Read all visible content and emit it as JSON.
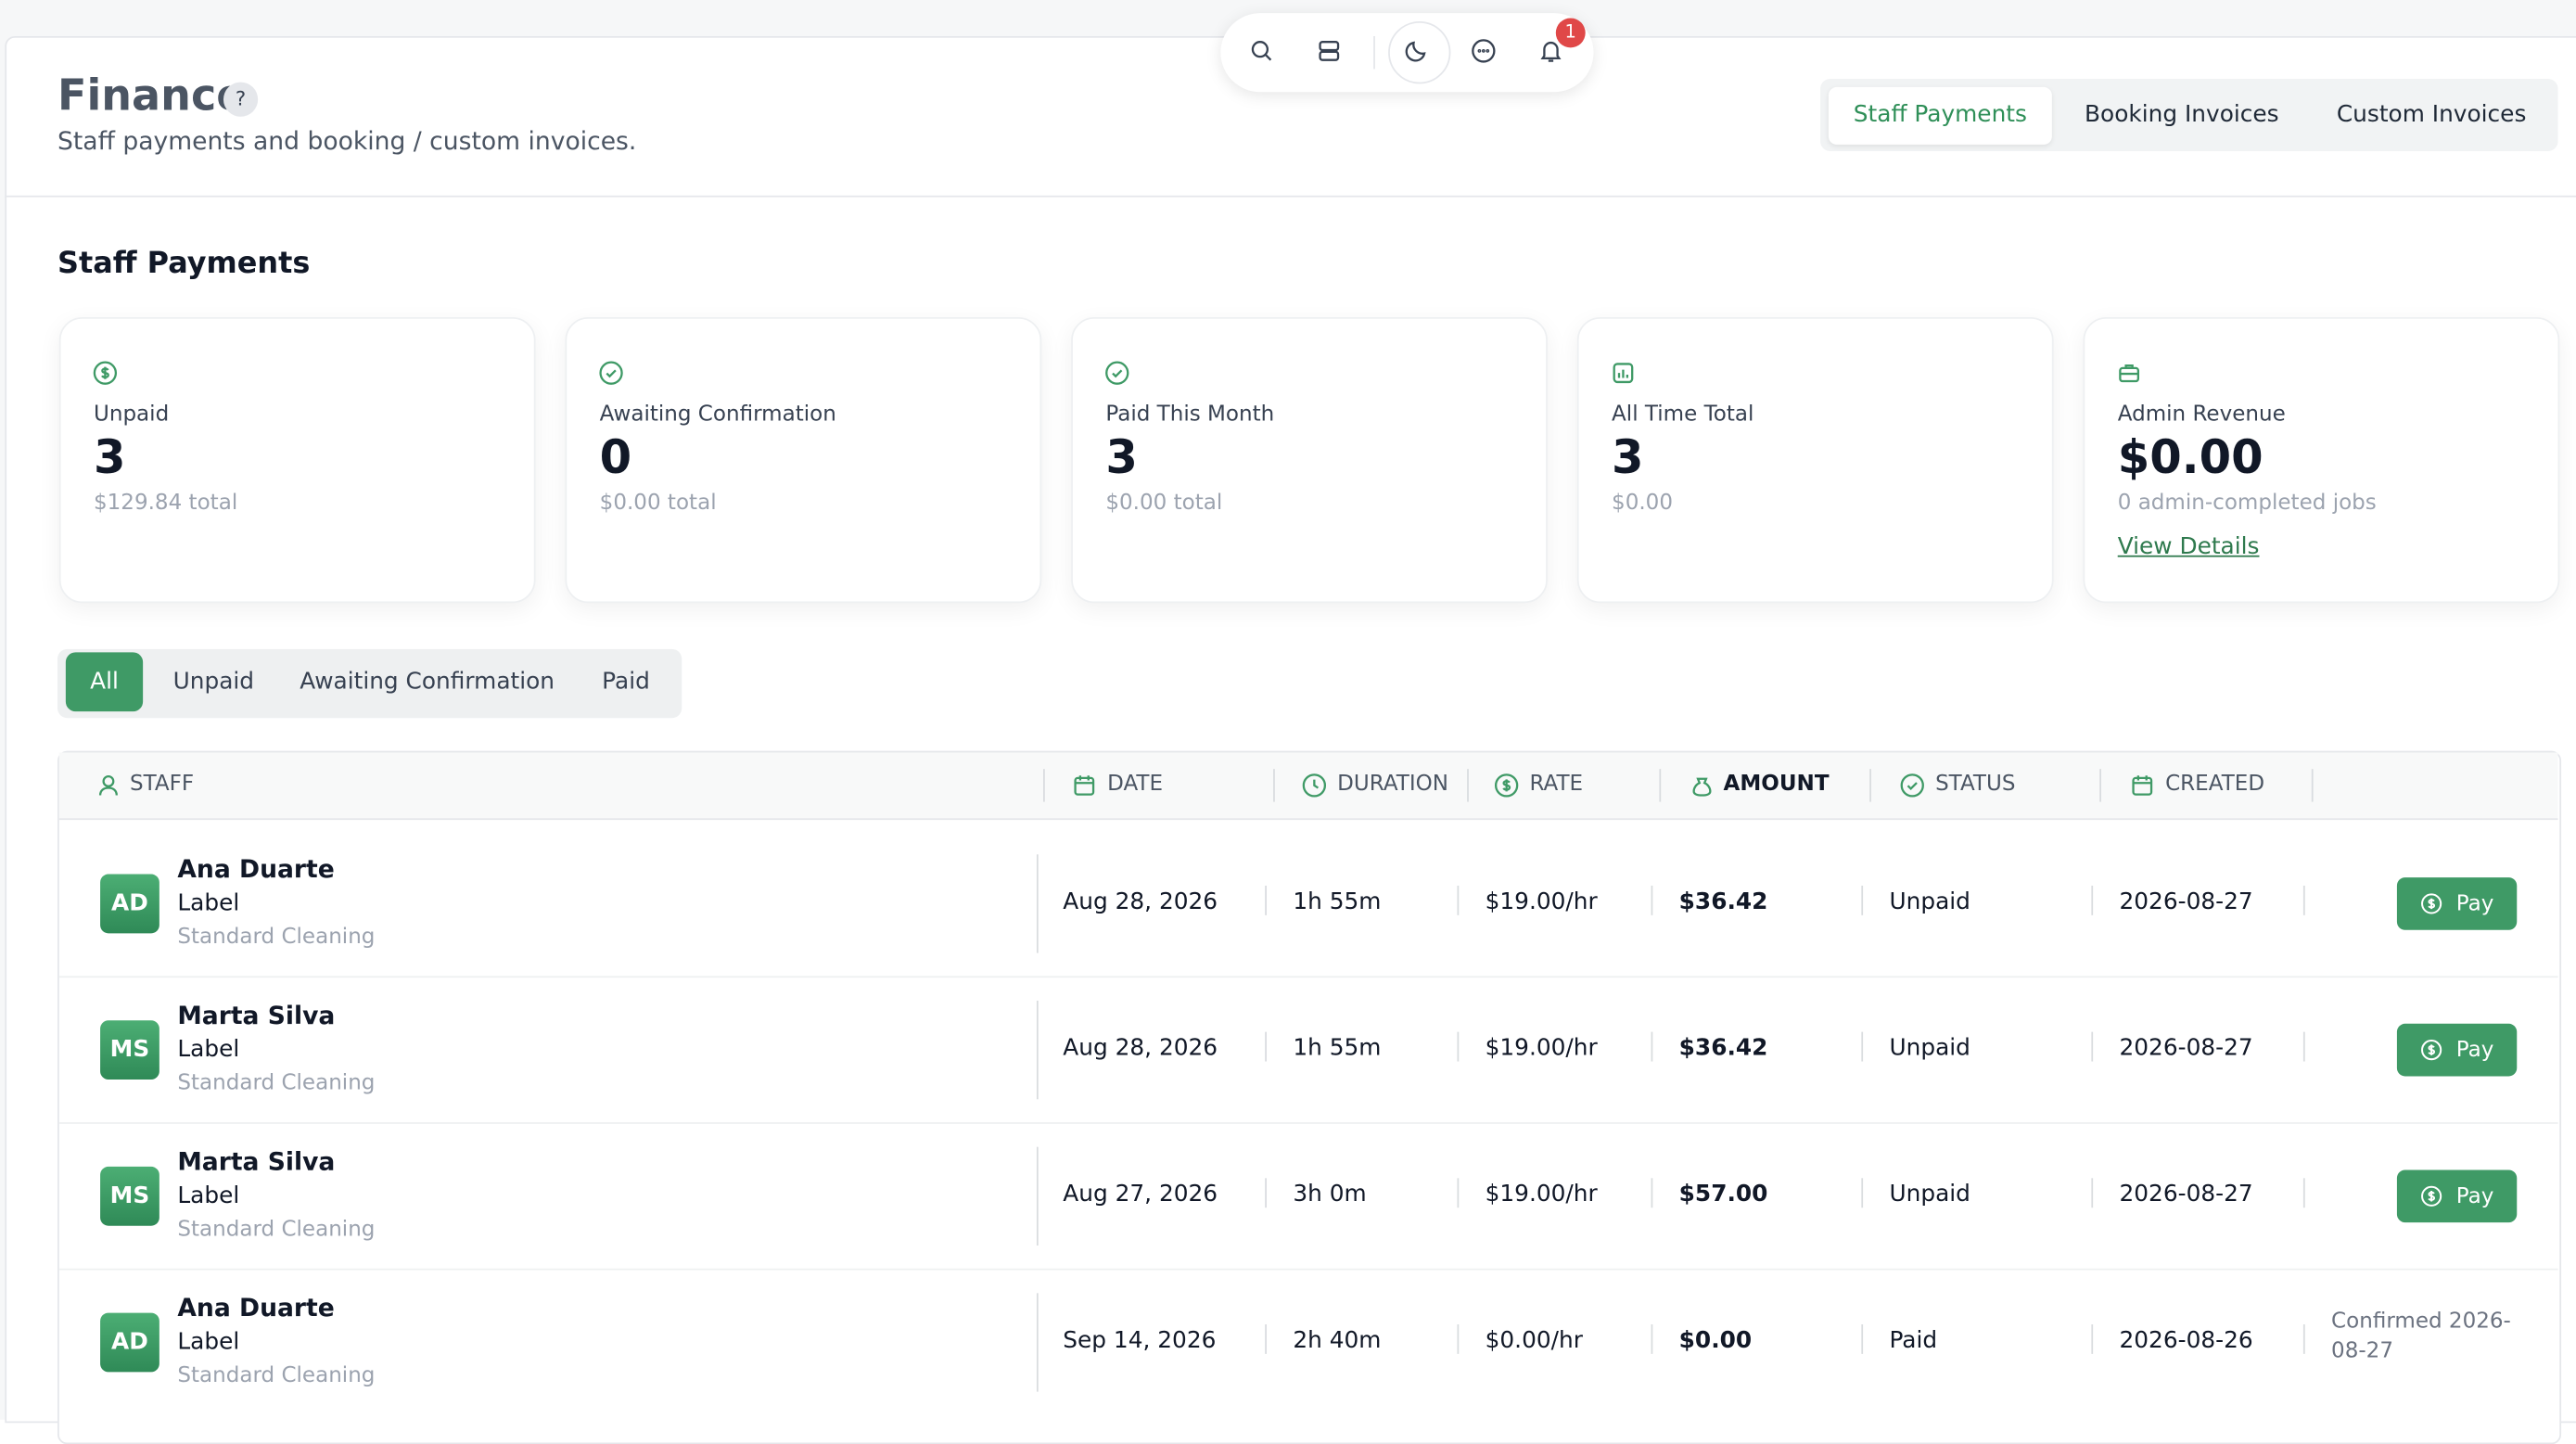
{
  "header": {
    "title": "Finance",
    "help": "?",
    "subtitle": "Staff payments and booking / custom invoices."
  },
  "toolbar": {
    "badge": "1"
  },
  "tabs": [
    "Staff Payments",
    "Booking Invoices",
    "Custom Invoices"
  ],
  "section_title": "Staff Payments",
  "cards": [
    {
      "label": "Unpaid",
      "value": "3",
      "sub": "$129.84 total"
    },
    {
      "label": "Awaiting Confirmation",
      "value": "0",
      "sub": "$0.00 total"
    },
    {
      "label": "Paid This Month",
      "value": "3",
      "sub": "$0.00 total"
    },
    {
      "label": "All Time Total",
      "value": "3",
      "sub": "$0.00"
    },
    {
      "label": "Admin Revenue",
      "value": "$0.00",
      "sub": "0 admin-completed jobs",
      "link": "View Details"
    }
  ],
  "filters": [
    "All",
    "Unpaid",
    "Awaiting Confirmation",
    "Paid"
  ],
  "table": {
    "columns": [
      "STAFF",
      "DATE",
      "DURATION",
      "RATE",
      "AMOUNT",
      "STATUS",
      "CREATED"
    ],
    "rows": [
      {
        "initials": "AD",
        "name": "Ana Duarte",
        "label": "Label",
        "service": "Standard Cleaning",
        "date": "Aug 28, 2026",
        "duration": "1h 55m",
        "rate": "$19.00/hr",
        "amount": "$36.42",
        "status": "Unpaid",
        "created": "2026-08-27",
        "action": "Pay"
      },
      {
        "initials": "MS",
        "name": "Marta Silva",
        "label": "Label",
        "service": "Standard Cleaning",
        "date": "Aug 28, 2026",
        "duration": "1h 55m",
        "rate": "$19.00/hr",
        "amount": "$36.42",
        "status": "Unpaid",
        "created": "2026-08-27",
        "action": "Pay"
      },
      {
        "initials": "MS",
        "name": "Marta Silva",
        "label": "Label",
        "service": "Standard Cleaning",
        "date": "Aug 27, 2026",
        "duration": "3h 0m",
        "rate": "$19.00/hr",
        "amount": "$57.00",
        "status": "Unpaid",
        "created": "2026-08-27",
        "action": "Pay"
      },
      {
        "initials": "AD",
        "name": "Ana Duarte",
        "label": "Label",
        "service": "Standard Cleaning",
        "date": "Sep 14, 2026",
        "duration": "2h 40m",
        "rate": "$0.00/hr",
        "amount": "$0.00",
        "status": "Paid",
        "created": "2026-08-26",
        "note": "Confirmed 2026-08-27"
      }
    ]
  }
}
